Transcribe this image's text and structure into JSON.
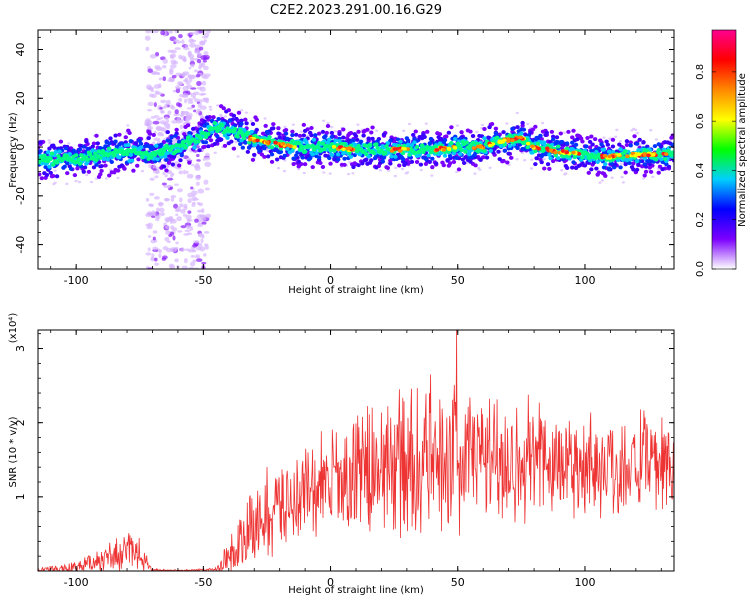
{
  "chart_data": [
    {
      "type": "heatmap",
      "title": "C2E2.2023.291.00.16.G29",
      "xlabel": "Height of straight line (km)",
      "ylabel": "Frequency (Hz)",
      "xlim": [
        -115,
        135
      ],
      "ylim": [
        -50,
        48
      ],
      "xticks": [
        "-100",
        "-50",
        "0",
        "50",
        "100"
      ],
      "yticks": [
        "40",
        "20",
        "0",
        "-20",
        "-40"
      ],
      "colorbar": {
        "label": "Normalized spectral amplitude",
        "ticks": [
          "0.0",
          "0.2",
          "0.4",
          "0.6",
          "0.8"
        ],
        "range": [
          0,
          0.97
        ],
        "colors": [
          "#ffffff",
          "#7c00ff",
          "#0000ff",
          "#00d0ff",
          "#00ff00",
          "#ffff00",
          "#ff8800",
          "#ff0000",
          "#ff0090"
        ]
      },
      "ridge": {
        "x": [
          -115,
          -100,
          -90,
          -80,
          -70,
          -60,
          -50,
          -45,
          -40,
          -30,
          -20,
          -10,
          0,
          10,
          20,
          30,
          40,
          50,
          60,
          65,
          70,
          75,
          80,
          90,
          100,
          110,
          120,
          135
        ],
        "y": [
          -5,
          -5,
          -3,
          -2,
          -3,
          0,
          5,
          8,
          7,
          3,
          1,
          0,
          0,
          -1,
          -1,
          -1,
          -1,
          0,
          0,
          2,
          3,
          4,
          0,
          -2,
          -3,
          -4,
          -3,
          -3
        ]
      },
      "scatter_band": {
        "x_range": [
          -72,
          -48
        ],
        "y_range": [
          -50,
          48
        ]
      },
      "hotspots": [
        -28,
        -18,
        5,
        28,
        45,
        60,
        70,
        78,
        88,
        95,
        110,
        120,
        128
      ]
    },
    {
      "type": "line",
      "title": "",
      "xlabel": "Height of straight line (km)",
      "ylabel": "SNR (10 * v/v)",
      "yscale_label": "(x10⁴)",
      "xlim": [
        -115,
        135
      ],
      "ylim": [
        0,
        3.25
      ],
      "xticks": [
        "-100",
        "-50",
        "0",
        "50",
        "100"
      ],
      "yticks": [
        "1",
        "2",
        "3"
      ],
      "color": "#ee3333",
      "envelope": {
        "x": [
          -115,
          -100,
          -90,
          -85,
          -80,
          -75,
          -72,
          -70,
          -65,
          -55,
          -45,
          -40,
          -35,
          -30,
          -25,
          -20,
          -10,
          0,
          10,
          20,
          30,
          40,
          50,
          60,
          70,
          80,
          90,
          100,
          110,
          120,
          130,
          135
        ],
        "base": [
          0.0,
          0.05,
          0.15,
          0.2,
          0.25,
          0.2,
          0.1,
          0.02,
          0.01,
          0.01,
          0.02,
          0.2,
          0.35,
          0.6,
          0.75,
          0.9,
          1.05,
          1.15,
          1.3,
          1.4,
          1.45,
          1.5,
          1.55,
          1.55,
          1.5,
          1.5,
          1.45,
          1.45,
          1.4,
          1.45,
          1.45,
          1.4
        ],
        "amp": [
          0.05,
          0.1,
          0.2,
          0.25,
          0.3,
          0.25,
          0.1,
          0.02,
          0.01,
          0.01,
          0.03,
          0.3,
          0.5,
          0.6,
          0.7,
          0.7,
          0.8,
          0.9,
          1.0,
          1.1,
          1.15,
          1.2,
          1.15,
          1.1,
          1.05,
          1.0,
          0.95,
          0.9,
          0.85,
          0.8,
          0.8,
          0.7
        ]
      },
      "peak_value": 3.25
    }
  ]
}
